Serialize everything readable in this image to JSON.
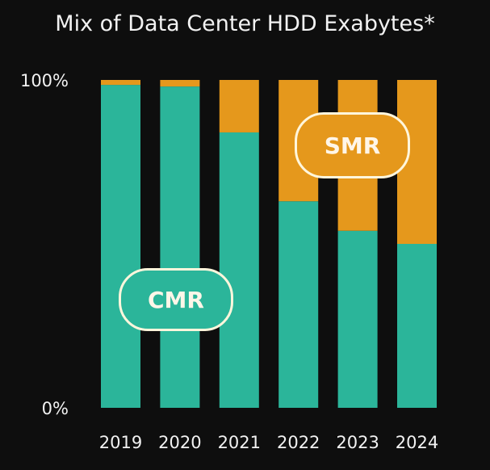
{
  "chart_data": {
    "type": "bar",
    "stacked": true,
    "title": "Mix of Data Center HDD Exabytes*",
    "categories": [
      "2019",
      "2020",
      "2021",
      "2022",
      "2023",
      "2024"
    ],
    "series": [
      {
        "name": "CMR",
        "values": [
          98.5,
          98,
          84,
          63,
          54,
          50
        ],
        "color": "#2bb59a"
      },
      {
        "name": "SMR",
        "values": [
          1.5,
          2,
          16,
          37,
          46,
          50
        ],
        "color": "#e5981c"
      }
    ],
    "yticks": [
      "0%",
      "100%"
    ],
    "ylim": [
      0,
      100
    ],
    "grid": false,
    "legend": "inline labels"
  }
}
